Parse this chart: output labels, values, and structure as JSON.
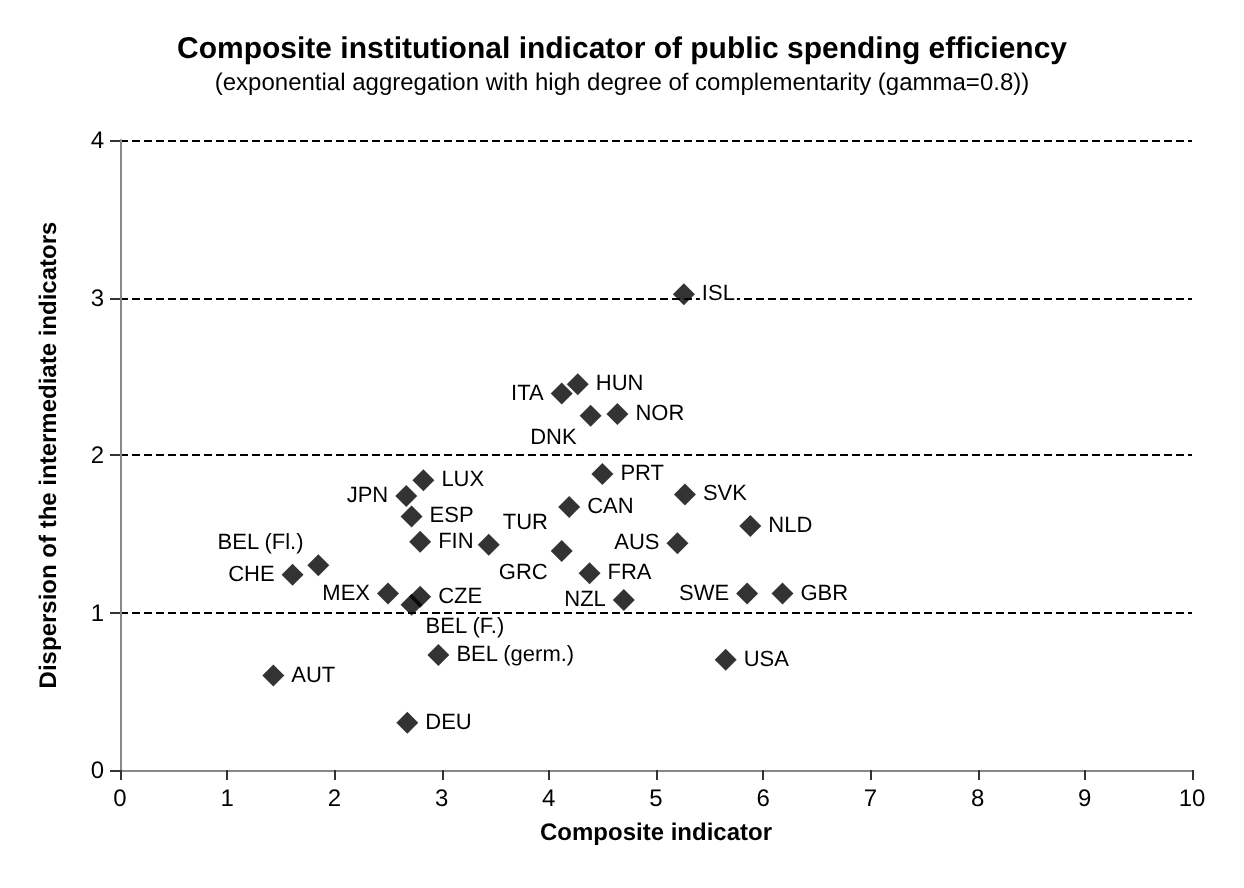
{
  "chart_data": {
    "type": "scatter",
    "title": "Composite institutional indicator of public spending efficiency",
    "subtitle": "(exponential aggregation with high degree of complementarity (gamma=0.8))",
    "xlabel": "Composite indicator",
    "ylabel": "Dispersion of the intermediate indicators",
    "x": [
      5.26,
      4.27,
      4.12,
      4.39,
      4.64,
      4.5,
      5.27,
      4.19,
      5.88,
      5.2,
      4.12,
      4.38,
      5.85,
      6.18,
      4.7,
      5.65,
      2.83,
      2.67,
      2.72,
      2.8,
      3.44,
      1.85,
      1.61,
      2.5,
      2.8,
      2.72,
      2.97,
      1.43,
      2.68
    ],
    "values": [
      3.02,
      2.45,
      2.39,
      2.25,
      2.26,
      1.88,
      1.75,
      1.67,
      1.55,
      1.44,
      1.39,
      1.25,
      1.12,
      1.12,
      1.08,
      0.7,
      1.84,
      1.74,
      1.61,
      1.45,
      1.43,
      1.3,
      1.24,
      1.12,
      1.1,
      1.05,
      0.73,
      0.6,
      0.3
    ],
    "color": "#000000",
    "marker": "diamond",
    "grid": "y",
    "xlim": [
      0,
      10
    ],
    "ylim": [
      0,
      4
    ],
    "xticks": [
      0,
      1,
      2,
      3,
      4,
      5,
      6,
      7,
      8,
      9,
      10
    ],
    "yticks": [
      0,
      1,
      2,
      3,
      4
    ],
    "annotations": [
      {
        "text": "ISL",
        "x": 5.26,
        "y": 3.02
      },
      {
        "text": "HUN",
        "x": 4.27,
        "y": 2.45
      },
      {
        "text": "ITA",
        "x": 4.12,
        "y": 2.39
      },
      {
        "text": "DNK",
        "x": 4.39,
        "y": 2.25
      },
      {
        "text": "NOR",
        "x": 4.64,
        "y": 2.26
      },
      {
        "text": "PRT",
        "x": 4.5,
        "y": 1.88
      },
      {
        "text": "SVK",
        "x": 5.27,
        "y": 1.75
      },
      {
        "text": "CAN",
        "x": 4.19,
        "y": 1.67
      },
      {
        "text": "NLD",
        "x": 5.88,
        "y": 1.55
      },
      {
        "text": "AUS",
        "x": 5.2,
        "y": 1.44
      },
      {
        "text": "GRC",
        "x": 4.12,
        "y": 1.39
      },
      {
        "text": "FRA",
        "x": 4.38,
        "y": 1.25
      },
      {
        "text": "SWE",
        "x": 5.85,
        "y": 1.12
      },
      {
        "text": "GBR",
        "x": 6.18,
        "y": 1.12
      },
      {
        "text": "NZL",
        "x": 4.7,
        "y": 1.08
      },
      {
        "text": "USA",
        "x": 5.65,
        "y": 0.7
      },
      {
        "text": "LUX",
        "x": 2.83,
        "y": 1.84
      },
      {
        "text": "JPN",
        "x": 2.67,
        "y": 1.74
      },
      {
        "text": "ESP",
        "x": 2.72,
        "y": 1.61
      },
      {
        "text": "FIN",
        "x": 2.8,
        "y": 1.45
      },
      {
        "text": "TUR",
        "x": 3.44,
        "y": 1.43
      },
      {
        "text": "BEL (Fl.)",
        "x": 1.85,
        "y": 1.3
      },
      {
        "text": "CHE",
        "x": 1.61,
        "y": 1.24
      },
      {
        "text": "MEX",
        "x": 2.5,
        "y": 1.12
      },
      {
        "text": "CZE",
        "x": 2.8,
        "y": 1.1
      },
      {
        "text": "BEL (F.)",
        "x": 2.72,
        "y": 1.05
      },
      {
        "text": "BEL (germ.)",
        "x": 2.97,
        "y": 0.73
      },
      {
        "text": "AUT",
        "x": 1.43,
        "y": 0.6
      },
      {
        "text": "DEU",
        "x": 2.68,
        "y": 0.3
      }
    ]
  }
}
